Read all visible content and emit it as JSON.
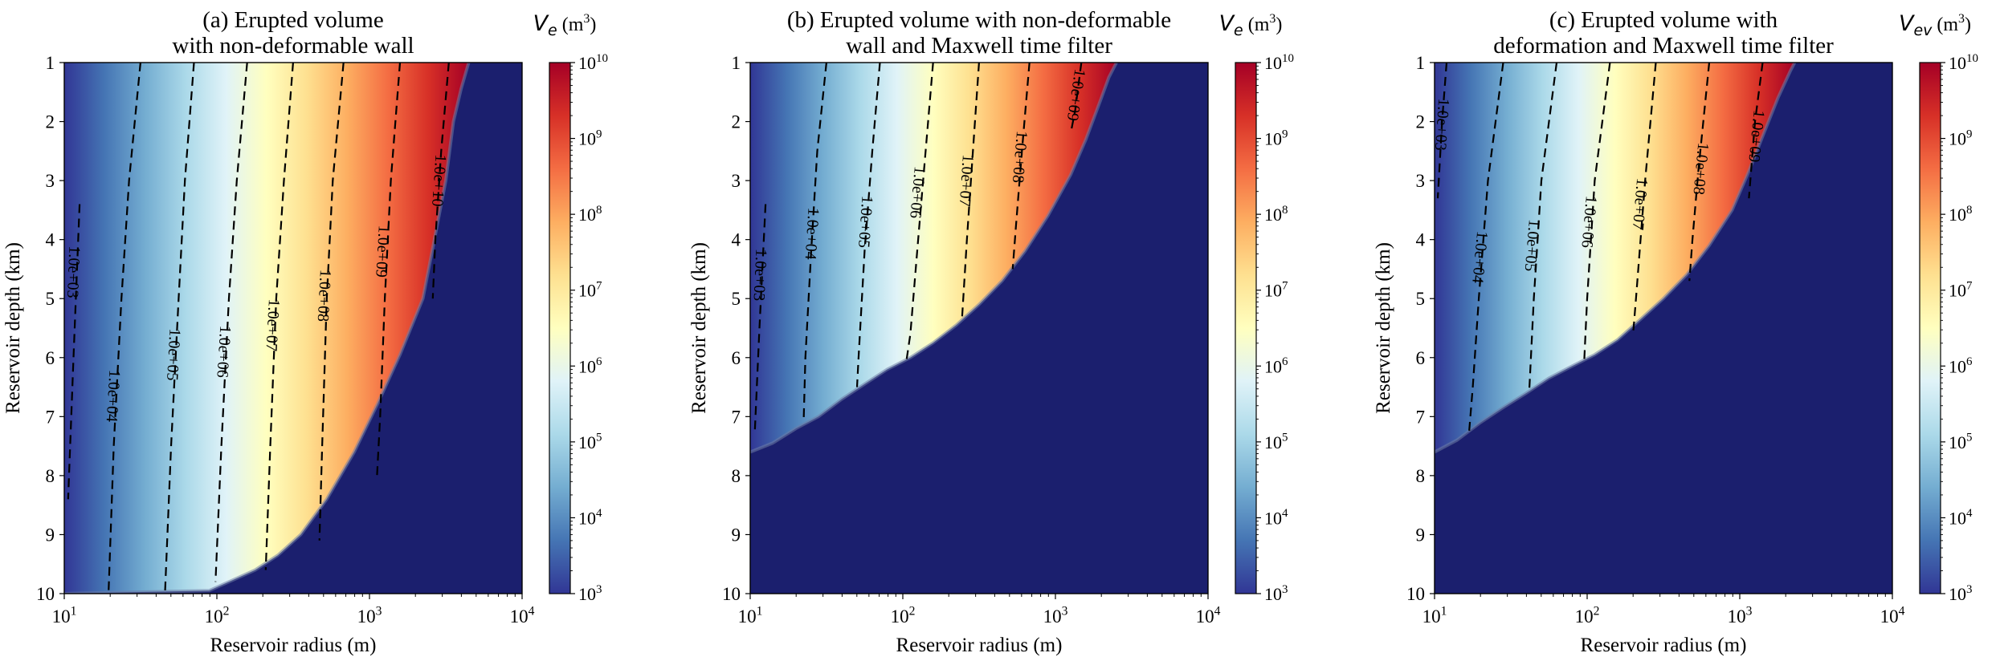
{
  "figure": {
    "background": "#ffffff",
    "fill_color": "#1b1f6e",
    "colormap": [
      "#313695",
      "#4575b4",
      "#74add1",
      "#abd9e9",
      "#e0f3f8",
      "#ffffbf",
      "#fee090",
      "#fdae61",
      "#f46d43",
      "#d73027",
      "#a50026"
    ]
  },
  "chart_data": [
    {
      "type": "heatmap",
      "title_line1": "(a) Erupted volume",
      "title_line2": "with non-deformable wall",
      "xlabel": "Reservoir radius (m)",
      "ylabel": "Reservoir depth (km)",
      "x_scale": "log",
      "xlim": [
        10,
        10000
      ],
      "ylim": [
        10,
        1
      ],
      "x_ticks": [
        {
          "major": "10",
          "exp": "1"
        },
        {
          "major": "10",
          "exp": "2"
        },
        {
          "major": "10",
          "exp": "3"
        },
        {
          "major": "10",
          "exp": "4"
        }
      ],
      "y_ticks": [
        "1",
        "2",
        "3",
        "4",
        "5",
        "6",
        "7",
        "8",
        "9",
        "10"
      ],
      "colorbar": {
        "label_symbol": "V",
        "label_sub": "e",
        "label_unit": "(m",
        "label_unit_exp": "3",
        "label_close": ")",
        "scale": "log",
        "range": [
          1000,
          10000000000
        ],
        "ticks": [
          {
            "major": "10",
            "exp": "3"
          },
          {
            "major": "10",
            "exp": "4"
          },
          {
            "major": "10",
            "exp": "5"
          },
          {
            "major": "10",
            "exp": "6"
          },
          {
            "major": "10",
            "exp": "7"
          },
          {
            "major": "10",
            "exp": "8"
          },
          {
            "major": "10",
            "exp": "9"
          },
          {
            "major": "10",
            "exp": "10"
          }
        ]
      },
      "contours": [
        {
          "label": "1.0e+03",
          "points": [
            [
              12.6,
              3.4
            ],
            [
              11.5,
              6.0
            ],
            [
              10.6,
              8.4
            ]
          ],
          "label_at": [
            11.6,
            4.55
          ]
        },
        {
          "label": "1.0e+04",
          "points": [
            [
              31.6,
              1.0
            ],
            [
              26.6,
              3.0
            ],
            [
              23.7,
              5.0
            ],
            [
              21.1,
              7.5
            ],
            [
              19.5,
              10.0
            ]
          ],
          "label_at": [
            21.1,
            6.65
          ]
        },
        {
          "label": "1.0e+05",
          "points": [
            [
              70.8,
              1.0
            ],
            [
              61.7,
              3.0
            ],
            [
              56.2,
              5.0
            ],
            [
              50.1,
              7.5
            ],
            [
              45.7,
              10.0
            ]
          ],
          "label_at": [
            52.5,
            5.95
          ]
        },
        {
          "label": "1.0e+06",
          "points": [
            [
              158,
              1.0
            ],
            [
              135,
              3.0
            ],
            [
              120,
              5.0
            ],
            [
              107,
              7.5
            ],
            [
              98,
              9.8
            ]
          ],
          "label_at": [
            112,
            5.9
          ]
        },
        {
          "label": "1.0e+07",
          "points": [
            [
              316,
              1.0
            ],
            [
              275,
              3.0
            ],
            [
              245,
              5.0
            ],
            [
              224,
              7.5
            ],
            [
              209,
              9.6
            ]
          ],
          "label_at": [
            234,
            5.45
          ]
        },
        {
          "label": "1.0e+08",
          "points": [
            [
              676,
              1.0
            ],
            [
              575,
              3.0
            ],
            [
              525,
              5.0
            ],
            [
              490,
              7.5
            ],
            [
              470,
              9.1
            ]
          ],
          "label_at": [
            510,
            4.95
          ]
        },
        {
          "label": "1.0e+09",
          "points": [
            [
              1585,
              1.0
            ],
            [
              1380,
              3.0
            ],
            [
              1260,
              5.0
            ],
            [
              1175,
              7.0
            ],
            [
              1120,
              8.0
            ]
          ],
          "label_at": [
            1230,
            4.2
          ]
        },
        {
          "label": "1.0e+10",
          "points": [
            [
              3310,
              1.0
            ],
            [
              2950,
              2.5
            ],
            [
              2700,
              4.0
            ],
            [
              2600,
              5.0
            ]
          ],
          "label_at": [
            2880,
            3.0
          ]
        }
      ],
      "boundary": [
        [
          10,
          10.0
        ],
        [
          89,
          9.95
        ],
        [
          120,
          9.8
        ],
        [
          178,
          9.6
        ],
        [
          251,
          9.35
        ],
        [
          355,
          9.0
        ],
        [
          525,
          8.4
        ],
        [
          794,
          7.6
        ],
        [
          1122,
          6.8
        ],
        [
          1585,
          5.95
        ],
        [
          2239,
          5.0
        ],
        [
          2661,
          4.0
        ],
        [
          3162,
          3.0
        ],
        [
          3548,
          2.0
        ],
        [
          3981,
          1.45
        ],
        [
          4467,
          1.0
        ]
      ]
    },
    {
      "type": "heatmap",
      "title_line1": "(b) Erupted volume with non-deformable",
      "title_line2": "wall and Maxwell time filter",
      "xlabel": "Reservoir radius (m)",
      "ylabel": "Reservoir depth (km)",
      "x_scale": "log",
      "xlim": [
        10,
        10000
      ],
      "ylim": [
        10,
        1
      ],
      "x_ticks": [
        {
          "major": "10",
          "exp": "1"
        },
        {
          "major": "10",
          "exp": "2"
        },
        {
          "major": "10",
          "exp": "3"
        },
        {
          "major": "10",
          "exp": "4"
        }
      ],
      "y_ticks": [
        "1",
        "2",
        "3",
        "4",
        "5",
        "6",
        "7",
        "8",
        "9",
        "10"
      ],
      "colorbar": {
        "label_symbol": "V",
        "label_sub": "e",
        "label_unit": "(m",
        "label_unit_exp": "3",
        "label_close": ")",
        "scale": "log",
        "range": [
          1000,
          10000000000
        ],
        "ticks": [
          {
            "major": "10",
            "exp": "3"
          },
          {
            "major": "10",
            "exp": "4"
          },
          {
            "major": "10",
            "exp": "5"
          },
          {
            "major": "10",
            "exp": "6"
          },
          {
            "major": "10",
            "exp": "7"
          },
          {
            "major": "10",
            "exp": "8"
          },
          {
            "major": "10",
            "exp": "9"
          },
          {
            "major": "10",
            "exp": "10"
          }
        ]
      },
      "contours": [
        {
          "label": "1.0e+03",
          "points": [
            [
              12.6,
              3.4
            ],
            [
              11.5,
              5.5
            ],
            [
              10.7,
              7.3
            ]
          ],
          "label_at": [
            11.7,
            4.6
          ]
        },
        {
          "label": "1.0e+04",
          "points": [
            [
              31.6,
              1.0
            ],
            [
              27.5,
              2.5
            ],
            [
              25.1,
              4.2
            ],
            [
              23.0,
              6.0
            ],
            [
              22.4,
              7.1
            ]
          ],
          "label_at": [
            25.6,
            3.9
          ]
        },
        {
          "label": "1.0e+05",
          "points": [
            [
              70.8,
              1.0
            ],
            [
              63.1,
              2.5
            ],
            [
              56.2,
              4.2
            ],
            [
              51.3,
              6.0
            ],
            [
              50.1,
              6.5
            ]
          ],
          "label_at": [
            57.5,
            3.7
          ]
        },
        {
          "label": "1.0e+06",
          "points": [
            [
              158,
              1.0
            ],
            [
              141,
              2.5
            ],
            [
              126,
              4.0
            ],
            [
              112,
              5.6
            ],
            [
              105,
              6.1
            ]
          ],
          "label_at": [
            126,
            3.2
          ]
        },
        {
          "label": "1.0e+07",
          "points": [
            [
              316,
              1.0
            ],
            [
              288,
              2.5
            ],
            [
              263,
              4.0
            ],
            [
              245,
              5.3
            ]
          ],
          "label_at": [
            263,
            3.0
          ]
        },
        {
          "label": "1.0e+08",
          "points": [
            [
              676,
              1.0
            ],
            [
              603,
              2.5
            ],
            [
              550,
              3.8
            ],
            [
              525,
              4.5
            ]
          ],
          "label_at": [
            590,
            2.6
          ]
        },
        {
          "label": "1.0e+09",
          "points": [
            [
              1479,
              1.0
            ],
            [
              1349,
              1.8
            ],
            [
              1259,
              2.2
            ]
          ],
          "label_at": [
            1380,
            1.55
          ]
        }
      ],
      "boundary": [
        [
          10,
          7.6
        ],
        [
          14,
          7.45
        ],
        [
          20,
          7.2
        ],
        [
          28,
          7.0
        ],
        [
          40,
          6.7
        ],
        [
          56,
          6.45
        ],
        [
          79,
          6.2
        ],
        [
          112,
          6.0
        ],
        [
          158,
          5.75
        ],
        [
          224,
          5.45
        ],
        [
          316,
          5.1
        ],
        [
          447,
          4.7
        ],
        [
          631,
          4.2
        ],
        [
          891,
          3.6
        ],
        [
          1259,
          2.9
        ],
        [
          1585,
          2.3
        ],
        [
          2000,
          1.6
        ],
        [
          2239,
          1.25
        ],
        [
          2512,
          1.0
        ]
      ]
    },
    {
      "type": "heatmap",
      "title_line1": "(c) Erupted volume with",
      "title_line2": "deformation and Maxwell time filter",
      "xlabel": "Reservoir radius (m)",
      "ylabel": "Reservoir depth (km)",
      "x_scale": "log",
      "xlim": [
        10,
        10000
      ],
      "ylim": [
        10,
        1
      ],
      "x_ticks": [
        {
          "major": "10",
          "exp": "1"
        },
        {
          "major": "10",
          "exp": "2"
        },
        {
          "major": "10",
          "exp": "3"
        },
        {
          "major": "10",
          "exp": "4"
        }
      ],
      "y_ticks": [
        "1",
        "2",
        "3",
        "4",
        "5",
        "6",
        "7",
        "8",
        "9",
        "10"
      ],
      "colorbar": {
        "label_symbol": "V",
        "label_sub": "ev",
        "label_unit": "(m",
        "label_unit_exp": "3",
        "label_close": ")",
        "scale": "log",
        "range": [
          1000,
          10000000000
        ],
        "ticks": [
          {
            "major": "10",
            "exp": "3"
          },
          {
            "major": "10",
            "exp": "4"
          },
          {
            "major": "10",
            "exp": "5"
          },
          {
            "major": "10",
            "exp": "6"
          },
          {
            "major": "10",
            "exp": "7"
          },
          {
            "major": "10",
            "exp": "8"
          },
          {
            "major": "10",
            "exp": "9"
          },
          {
            "major": "10",
            "exp": "10"
          }
        ]
      },
      "contours": [
        {
          "label": "1.0e+03",
          "points": [
            [
              12.0,
              1.0
            ],
            [
              11.2,
              2.0
            ],
            [
              10.5,
              3.3
            ]
          ],
          "label_at": [
            11.3,
            2.05
          ]
        },
        {
          "label": "1.0e+04",
          "points": [
            [
              28.2,
              1.0
            ],
            [
              22.4,
              3.0
            ],
            [
              19.5,
              5.0
            ],
            [
              17.8,
              6.5
            ],
            [
              16.8,
              7.3
            ]
          ],
          "label_at": [
            20.0,
            4.3
          ]
        },
        {
          "label": "1.0e+05",
          "points": [
            [
              63.1,
              1.0
            ],
            [
              50.1,
              3.0
            ],
            [
              44.7,
              5.0
            ],
            [
              41.7,
              6.6
            ]
          ],
          "label_at": [
            44.0,
            4.1
          ]
        },
        {
          "label": "1.0e+06",
          "points": [
            [
              141,
              1.0
            ],
            [
              112,
              3.0
            ],
            [
              100,
              5.0
            ],
            [
              95.5,
              6.1
            ]
          ],
          "label_at": [
            104,
            3.7
          ]
        },
        {
          "label": "1.0e+07",
          "points": [
            [
              282,
              1.0
            ],
            [
              240,
              3.0
            ],
            [
              209,
              5.0
            ],
            [
              200,
              5.6
            ]
          ],
          "label_at": [
            224,
            3.4
          ]
        },
        {
          "label": "1.0e+08",
          "points": [
            [
              631,
              1.0
            ],
            [
              537,
              2.8
            ],
            [
              490,
              4.0
            ],
            [
              468,
              4.7
            ]
          ],
          "label_at": [
            562,
            2.8
          ]
        },
        {
          "label": "1.0e+09",
          "points": [
            [
              1413,
              1.0
            ],
            [
              1259,
              2.0
            ],
            [
              1148,
              3.3
            ]
          ],
          "label_at": [
            1300,
            2.25
          ]
        }
      ],
      "boundary": [
        [
          10,
          7.6
        ],
        [
          14,
          7.4
        ],
        [
          20,
          7.1
        ],
        [
          28,
          6.85
        ],
        [
          40,
          6.6
        ],
        [
          56,
          6.35
        ],
        [
          79,
          6.15
        ],
        [
          112,
          5.95
        ],
        [
          158,
          5.7
        ],
        [
          224,
          5.35
        ],
        [
          316,
          5.0
        ],
        [
          447,
          4.6
        ],
        [
          631,
          4.1
        ],
        [
          891,
          3.5
        ],
        [
          1122,
          2.9
        ],
        [
          1413,
          2.25
        ],
        [
          1778,
          1.6
        ],
        [
          2138,
          1.15
        ],
        [
          2291,
          1.0
        ]
      ]
    }
  ]
}
